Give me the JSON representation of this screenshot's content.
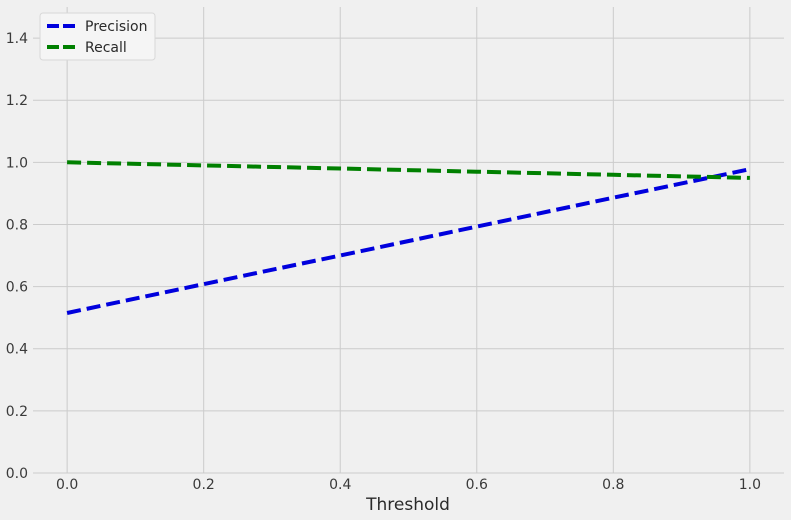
{
  "chart_data": {
    "type": "line",
    "title": "",
    "xlabel": "Threshold",
    "ylabel": "",
    "xlim": [
      -0.05,
      1.05
    ],
    "ylim": [
      0.0,
      1.5
    ],
    "x_ticks": [
      0.0,
      0.2,
      0.4,
      0.6,
      0.8,
      1.0
    ],
    "x_tick_labels": [
      "0.0",
      "0.2",
      "0.4",
      "0.6",
      "0.8",
      "1.0"
    ],
    "y_ticks": [
      0.0,
      0.2,
      0.4,
      0.6,
      0.8,
      1.0,
      1.2,
      1.4
    ],
    "y_tick_labels": [
      "0.0",
      "0.2",
      "0.4",
      "0.6",
      "0.8",
      "1.0",
      "1.2",
      "1.4"
    ],
    "grid": true,
    "legend_position": "top-left",
    "series": [
      {
        "name": "Precision",
        "color": "#0000dd",
        "style": "dashed",
        "x": [
          0.0,
          0.2,
          0.4,
          0.6,
          0.8,
          1.0
        ],
        "y": [
          0.515,
          0.608,
          0.7,
          0.793,
          0.886,
          0.978
        ]
      },
      {
        "name": "Recall",
        "color": "#008000",
        "style": "dashed",
        "x": [
          0.0,
          0.2,
          0.4,
          0.6,
          0.8,
          1.0
        ],
        "y": [
          1.0,
          0.99,
          0.98,
          0.97,
          0.96,
          0.95
        ]
      }
    ]
  }
}
